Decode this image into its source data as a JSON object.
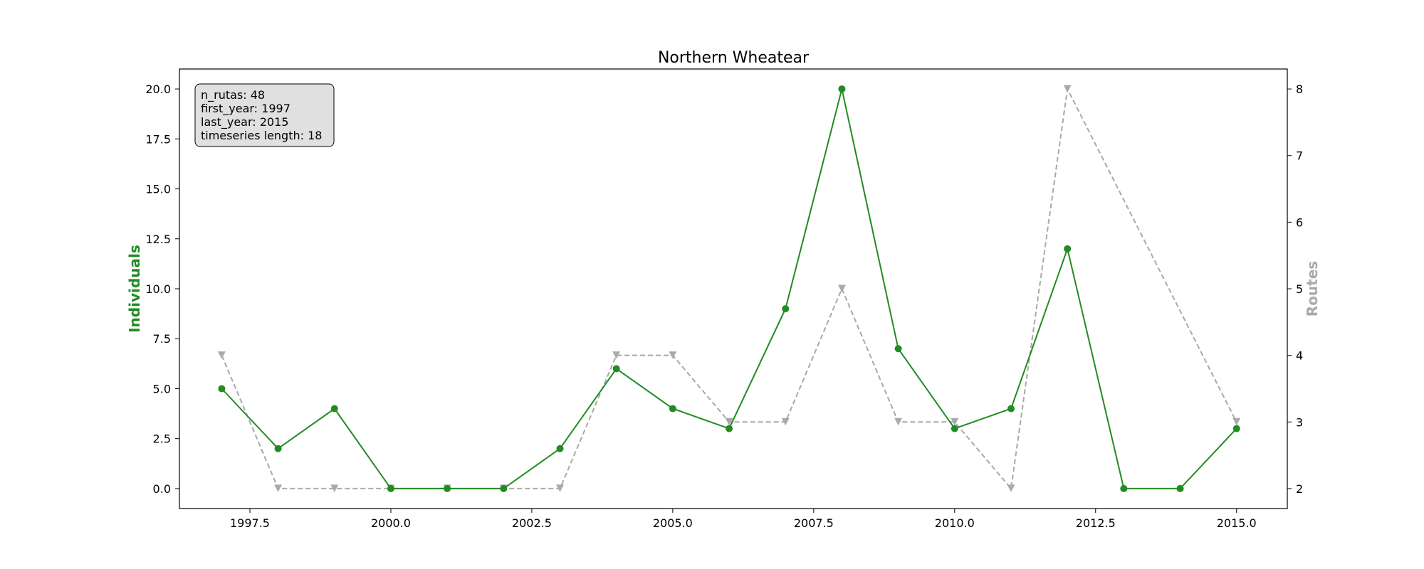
{
  "chart_data": {
    "type": "line",
    "title": "Northern Wheatear",
    "x": [
      1997,
      1998,
      1999,
      2000,
      2001,
      2002,
      2003,
      2004,
      2005,
      2006,
      2007,
      2008,
      2009,
      2010,
      2011,
      2012,
      2013,
      2014,
      2015
    ],
    "xlim": [
      1996.25,
      2015.9
    ],
    "x_ticks": [
      "1997.5",
      "2000.0",
      "2002.5",
      "2005.0",
      "2007.5",
      "2010.0",
      "2012.5",
      "2015.0"
    ],
    "ylabel_left": "Individuals",
    "ylim_left": [
      -1.0,
      21.0
    ],
    "y_ticks_left": [
      "0.0",
      "2.5",
      "5.0",
      "7.5",
      "10.0",
      "12.5",
      "15.0",
      "17.5",
      "20.0"
    ],
    "ylabel_right": "Routes",
    "ylim_right": [
      1.7,
      8.3
    ],
    "y_ticks_right": [
      "2",
      "3",
      "4",
      "5",
      "6",
      "7",
      "8"
    ],
    "grid": false,
    "series": [
      {
        "axis": "left",
        "color": "#228B22",
        "marker": "circle",
        "linestyle": "solid",
        "values": [
          5,
          2,
          4,
          0,
          0,
          0,
          2,
          6,
          4,
          3,
          9,
          20,
          7,
          3,
          4,
          12,
          0,
          0,
          3
        ]
      },
      {
        "axis": "right",
        "color": "#A9A9A9",
        "marker": "triangle-down",
        "linestyle": "dashed",
        "values": [
          4,
          2,
          2,
          2,
          2,
          2,
          2,
          4,
          4,
          3,
          3,
          5,
          3,
          3,
          2,
          8,
          null,
          null,
          3
        ]
      }
    ],
    "info_box": {
      "lines": [
        "n_rutas: 48",
        "first_year: 1997",
        "last_year: 2015",
        "timeseries length: 18"
      ]
    }
  }
}
